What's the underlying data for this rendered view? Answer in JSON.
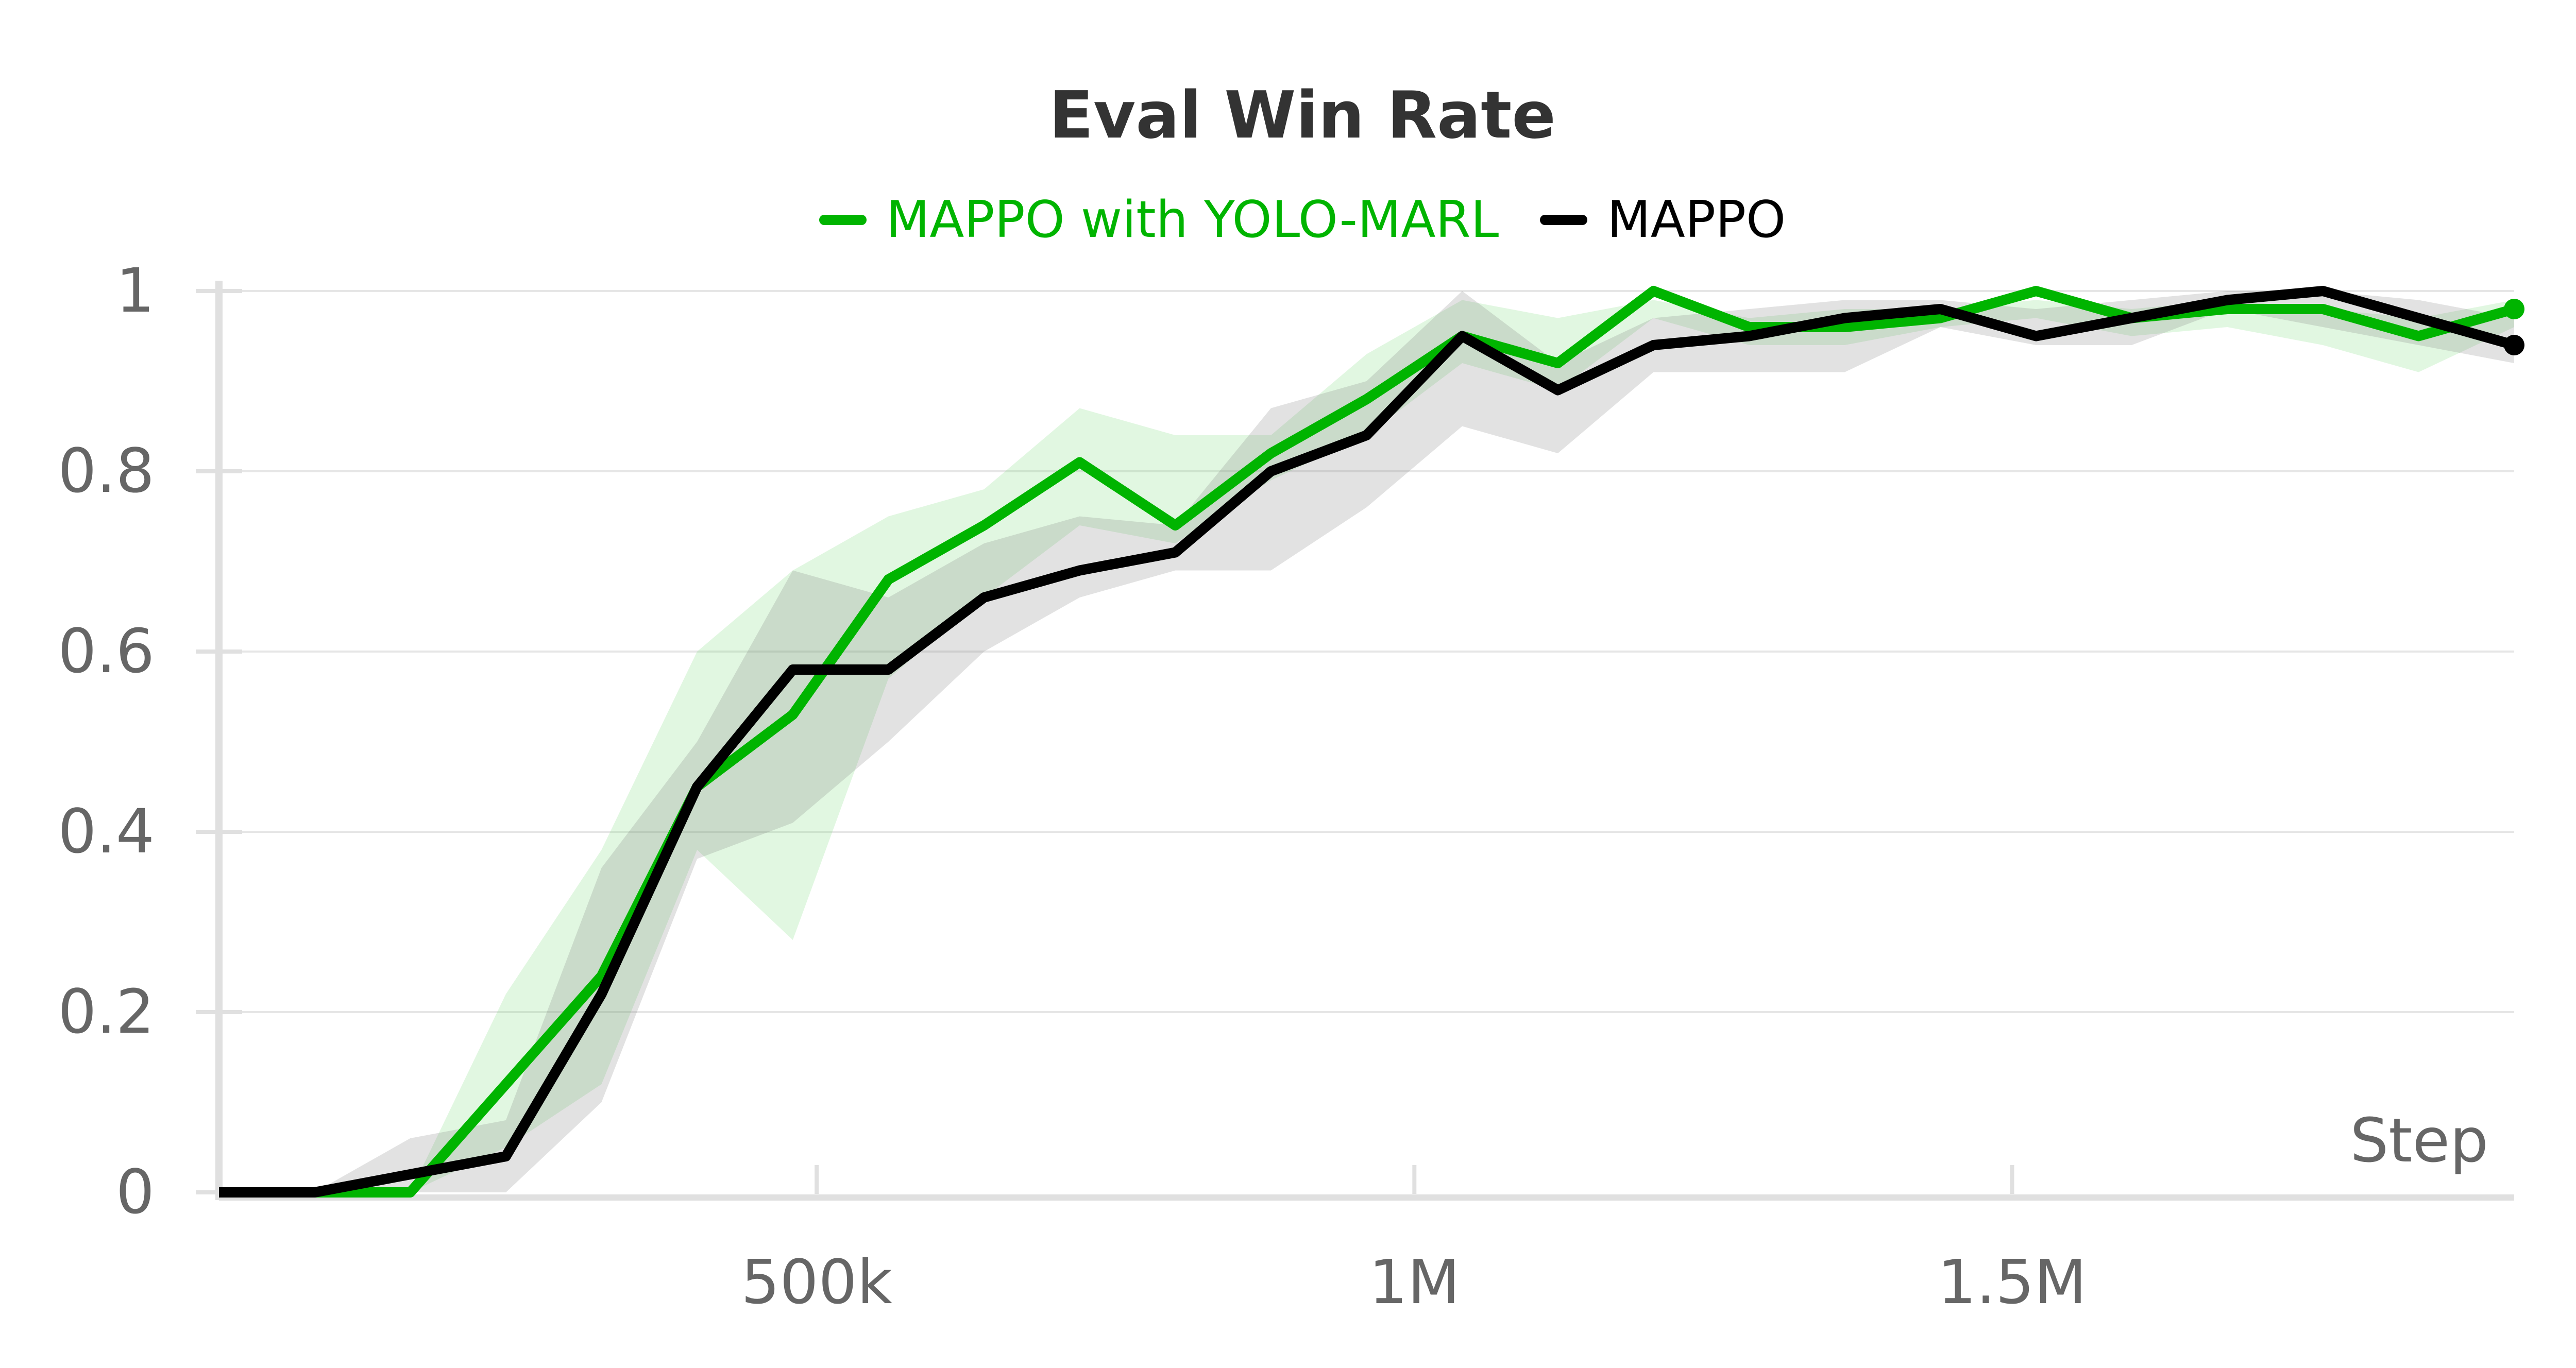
{
  "chart_data": {
    "type": "line",
    "title": "Eval Win Rate",
    "xlabel": "Step",
    "ylabel": "",
    "xlim": [
      0,
      1920000
    ],
    "ylim": [
      0,
      1
    ],
    "x_ticks": [
      {
        "value": 500000,
        "label": "500k"
      },
      {
        "value": 1000000,
        "label": "1M"
      },
      {
        "value": 1500000,
        "label": "1.5M"
      }
    ],
    "y_ticks": [
      {
        "value": 0,
        "label": "0"
      },
      {
        "value": 0.2,
        "label": "0.2"
      },
      {
        "value": 0.4,
        "label": "0.4"
      },
      {
        "value": 0.6,
        "label": "0.6"
      },
      {
        "value": 0.8,
        "label": "0.8"
      },
      {
        "value": 1,
        "label": "1"
      }
    ],
    "grid": true,
    "legend_position": "top-center",
    "series": [
      {
        "name": "MAPPO with YOLO-MARL",
        "color": "#00b400",
        "x": [
          0,
          80000,
          160000,
          240000,
          320000,
          400000,
          480000,
          560000,
          640000,
          720000,
          800000,
          880000,
          960000,
          1040000,
          1120000,
          1200000,
          1280000,
          1360000,
          1440000,
          1520000,
          1600000,
          1680000,
          1760000,
          1840000,
          1920000
        ],
        "y": [
          0,
          0,
          0,
          0.12,
          0.24,
          0.45,
          0.53,
          0.68,
          0.74,
          0.81,
          0.74,
          0.82,
          0.88,
          0.95,
          0.92,
          1.0,
          0.96,
          0.96,
          0.97,
          1.0,
          0.97,
          0.98,
          0.98,
          0.95,
          0.98
        ],
        "upper": [
          0,
          0,
          0,
          0.22,
          0.38,
          0.6,
          0.69,
          0.75,
          0.78,
          0.87,
          0.84,
          0.84,
          0.93,
          0.99,
          0.97,
          0.99,
          0.97,
          0.98,
          0.98,
          0.99,
          0.98,
          0.99,
          0.98,
          0.97,
          0.99
        ],
        "lower": [
          0,
          0,
          0,
          0.05,
          0.12,
          0.38,
          0.28,
          0.57,
          0.66,
          0.74,
          0.72,
          0.79,
          0.84,
          0.92,
          0.89,
          0.97,
          0.94,
          0.94,
          0.96,
          0.97,
          0.95,
          0.96,
          0.94,
          0.91,
          0.96
        ]
      },
      {
        "name": "MAPPO",
        "color": "#000000",
        "x": [
          0,
          80000,
          160000,
          240000,
          320000,
          400000,
          480000,
          560000,
          640000,
          720000,
          800000,
          880000,
          960000,
          1040000,
          1120000,
          1200000,
          1280000,
          1360000,
          1440000,
          1520000,
          1600000,
          1680000,
          1760000,
          1840000,
          1920000
        ],
        "y": [
          0,
          0,
          0.02,
          0.04,
          0.22,
          0.45,
          0.58,
          0.58,
          0.66,
          0.69,
          0.71,
          0.8,
          0.84,
          0.95,
          0.89,
          0.94,
          0.95,
          0.97,
          0.98,
          0.95,
          0.97,
          0.99,
          1.0,
          0.97,
          0.94
        ],
        "upper": [
          0,
          0,
          0.06,
          0.08,
          0.36,
          0.5,
          0.69,
          0.66,
          0.72,
          0.75,
          0.74,
          0.87,
          0.9,
          1.0,
          0.92,
          0.97,
          0.98,
          0.99,
          0.99,
          0.98,
          0.99,
          1.0,
          1.0,
          0.99,
          0.97
        ],
        "lower": [
          0,
          0,
          0,
          0,
          0.1,
          0.37,
          0.41,
          0.5,
          0.6,
          0.66,
          0.69,
          0.69,
          0.76,
          0.85,
          0.82,
          0.91,
          0.91,
          0.91,
          0.96,
          0.94,
          0.94,
          0.98,
          0.96,
          0.94,
          0.92
        ]
      }
    ]
  }
}
